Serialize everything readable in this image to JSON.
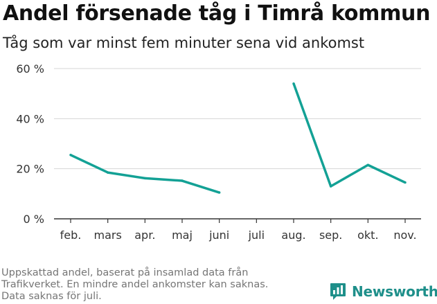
{
  "title": "Andel försenade tåg i Timrå kommun",
  "subtitle": "Tåg som var minst fem minuter sena vid ankomst",
  "footnote": [
    "Uppskattad andel, baserat på insamlad data från",
    "Trafikverket. En mindre andel ankomster kan saknas.",
    "Data saknas för juli."
  ],
  "brand": {
    "name": "Newsworthy",
    "color": "#1e8f8a",
    "icon": "newsworthy-logo-icon"
  },
  "chart_data": {
    "type": "line",
    "title": "Andel försenade tåg i Timrå kommun",
    "subtitle": "Tåg som var minst fem minuter sena vid ankomst",
    "categories": [
      "feb.",
      "mars",
      "apr.",
      "maj",
      "juni",
      "juli",
      "aug.",
      "sep.",
      "okt.",
      "nov."
    ],
    "series": [
      {
        "color": "#13a195",
        "values": [
          25.5,
          18.5,
          16.2,
          15.2,
          10.5,
          null,
          54,
          13,
          21.5,
          14.5
        ]
      }
    ],
    "ylim": [
      0,
      60
    ],
    "yticks": [
      0,
      20,
      40,
      60
    ],
    "ytick_labels": [
      "0 %",
      "20 %",
      "40 %",
      "60 %"
    ],
    "grid": true,
    "xlabel": "",
    "ylabel": ""
  }
}
